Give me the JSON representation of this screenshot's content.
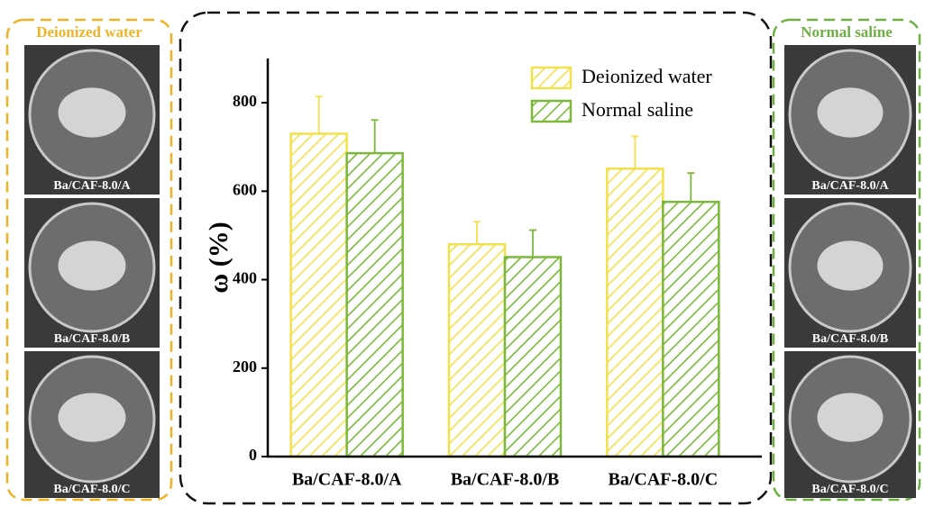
{
  "chart_data": {
    "type": "bar",
    "y_label": "ω (%)",
    "categories": [
      "Ba/CAF-8.0/A",
      "Ba/CAF-8.0/B",
      "Ba/CAF-8.0/C"
    ],
    "series": [
      {
        "name": "Deionized water",
        "color": "#f2e14c",
        "values": [
          730,
          480,
          651
        ],
        "errors": [
          84,
          51,
          73
        ]
      },
      {
        "name": "Normal saline",
        "color": "#7cb83a",
        "values": [
          686,
          451,
          576
        ],
        "errors": [
          75,
          61,
          65
        ]
      }
    ],
    "ylim": [
      0,
      900
    ],
    "yticks": [
      0,
      200,
      400,
      600,
      800
    ],
    "legend": "upper right"
  },
  "panels": {
    "left": {
      "title": "Deionized water",
      "color": "#f0b323",
      "captions": [
        "Ba/CAF-8.0/A",
        "Ba/CAF-8.0/B",
        "Ba/CAF-8.0/C"
      ]
    },
    "right": {
      "title": "Normal saline",
      "color": "#6fb043",
      "captions": [
        "Ba/CAF-8.0/A",
        "Ba/CAF-8.0/B",
        "Ba/CAF-8.0/C"
      ]
    }
  }
}
